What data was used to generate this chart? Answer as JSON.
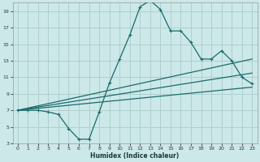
{
  "bg_color": "#cce8e8",
  "grid_color": "#aacccc",
  "line_color": "#1a6b6b",
  "xlabel": "Humidex (Indice chaleur)",
  "xlim": [
    -0.5,
    23.5
  ],
  "ylim": [
    3,
    20
  ],
  "xticks": [
    0,
    1,
    2,
    3,
    4,
    5,
    6,
    7,
    8,
    9,
    10,
    11,
    12,
    13,
    14,
    15,
    16,
    17,
    18,
    19,
    20,
    21,
    22,
    23
  ],
  "yticks": [
    3,
    5,
    7,
    9,
    11,
    13,
    15,
    17,
    19
  ],
  "series0_x": [
    0,
    1,
    2,
    3,
    4,
    5,
    6,
    7,
    8,
    9,
    10,
    11,
    12,
    13,
    14,
    15,
    16,
    17,
    18,
    19,
    20,
    21,
    22,
    23
  ],
  "series0_y": [
    7,
    7,
    7,
    6.8,
    6.5,
    4.8,
    3.5,
    3.5,
    6.8,
    10.3,
    13.2,
    16.1,
    19.5,
    20.3,
    19.2,
    16.6,
    16.6,
    15.2,
    13.2,
    13.2,
    14.2,
    13.0,
    11.0,
    10.2
  ],
  "line1": {
    "x": [
      0,
      23
    ],
    "y": [
      7,
      13.2
    ]
  },
  "line2": {
    "x": [
      0,
      23
    ],
    "y": [
      7,
      11.5
    ]
  },
  "line3": {
    "x": [
      0,
      23
    ],
    "y": [
      7,
      9.8
    ]
  }
}
